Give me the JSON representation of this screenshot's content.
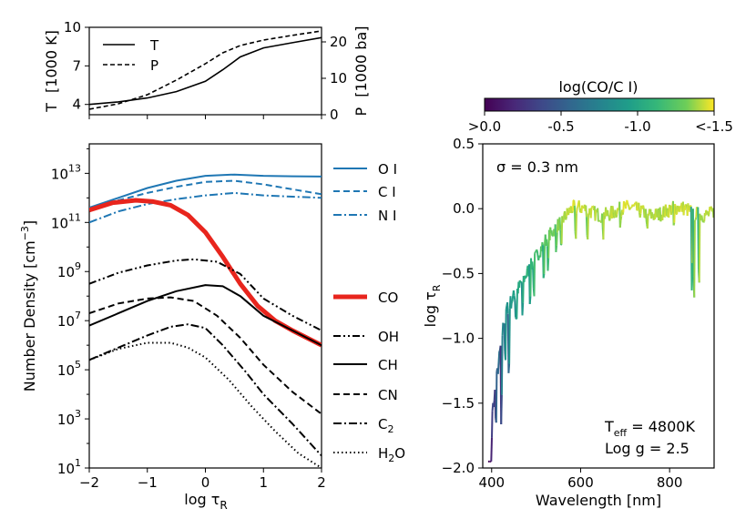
{
  "chart_data": [
    {
      "id": "temperature_pressure",
      "type": "line",
      "x_range": [
        -2,
        2
      ],
      "y_left": {
        "label_main": "T",
        "label_unit": "[1000 K]",
        "range": [
          3.2,
          10
        ],
        "ticks": [
          "4",
          "7",
          "10"
        ],
        "tick_values": [
          4,
          7,
          10
        ]
      },
      "y_right": {
        "label_main": "P",
        "label_unit": "[1000 ba]",
        "range": [
          0,
          24
        ],
        "ticks": [
          "0",
          "10",
          "20"
        ],
        "tick_values": [
          0,
          10,
          20
        ]
      },
      "legend": {
        "position": "upper-left",
        "entries": [
          "T",
          "P"
        ]
      },
      "series": [
        {
          "name": "T",
          "axis": "left",
          "style": "solid",
          "x": [
            -2,
            -1.5,
            -1,
            -0.5,
            0,
            0.3,
            0.6,
            1.0,
            1.5,
            2.0
          ],
          "y": [
            4.0,
            4.2,
            4.5,
            5.0,
            5.8,
            6.7,
            7.7,
            8.4,
            8.8,
            9.2
          ]
        },
        {
          "name": "P",
          "axis": "right",
          "style": "dashed",
          "x": [
            -2,
            -1.5,
            -1,
            -0.5,
            0,
            0.3,
            0.6,
            1.0,
            1.5,
            2.0
          ],
          "y": [
            1.5,
            3.0,
            5.5,
            9.5,
            14.0,
            17.0,
            19.0,
            20.5,
            21.8,
            23.0
          ]
        }
      ]
    },
    {
      "id": "number_density",
      "type": "line",
      "xlabel_main": "log τ",
      "xlabel_sub": "R",
      "ylabel_main": "Number Density [cm",
      "ylabel_sup": "−3",
      "ylabel_end": "]",
      "x_range": [
        -2,
        2
      ],
      "x_ticks": [
        "−2",
        "−1",
        "0",
        "1",
        "2"
      ],
      "x_tick_values": [
        -2,
        -1,
        0,
        1,
        2
      ],
      "y_scale": "log",
      "y_range_log10": [
        1,
        14.2
      ],
      "y_ticks": [
        {
          "base": "10",
          "exp": "1",
          "log10": 1
        },
        {
          "base": "10",
          "exp": "3",
          "log10": 3
        },
        {
          "base": "10",
          "exp": "5",
          "log10": 5
        },
        {
          "base": "10",
          "exp": "7",
          "log10": 7
        },
        {
          "base": "10",
          "exp": "9",
          "log10": 9
        },
        {
          "base": "10",
          "exp": "11",
          "log10": 11
        },
        {
          "base": "10",
          "exp": "13",
          "log10": 13
        }
      ],
      "legend_position": "right",
      "series": [
        {
          "name": "O I",
          "label_text": "O I",
          "color": "#1f77b4",
          "style": "solid",
          "x": [
            -2,
            -1.5,
            -1,
            -0.5,
            0,
            0.5,
            1,
            1.5,
            2
          ],
          "log10_y": [
            11.6,
            12.0,
            12.4,
            12.7,
            12.9,
            12.95,
            12.9,
            12.88,
            12.87
          ]
        },
        {
          "name": "C I",
          "label_text": "C I",
          "color": "#1f77b4",
          "style": "dashed",
          "x": [
            -2,
            -1.5,
            -1,
            -0.5,
            0,
            0.5,
            1,
            1.5,
            2
          ],
          "log10_y": [
            11.5,
            11.9,
            12.2,
            12.45,
            12.65,
            12.7,
            12.55,
            12.35,
            12.15
          ]
        },
        {
          "name": "N I",
          "label_text": "N I",
          "color": "#1f77b4",
          "style": "dashdot",
          "x": [
            -2,
            -1.5,
            -1,
            -0.5,
            0,
            0.5,
            1,
            1.5,
            2
          ],
          "log10_y": [
            11.0,
            11.45,
            11.75,
            11.95,
            12.1,
            12.2,
            12.1,
            12.05,
            12.0
          ]
        },
        {
          "name": "CO",
          "label_text": "CO",
          "color": "#e8251d",
          "style": "solid-thick",
          "x": [
            -2,
            -1.6,
            -1.2,
            -0.9,
            -0.6,
            -0.3,
            0,
            0.3,
            0.6,
            0.9,
            1.2,
            1.5,
            2.0
          ],
          "log10_y": [
            11.5,
            11.8,
            11.9,
            11.85,
            11.7,
            11.3,
            10.6,
            9.6,
            8.5,
            7.6,
            7.0,
            6.6,
            6.0
          ]
        },
        {
          "name": "OH",
          "label_text": "OH",
          "color": "#000000",
          "style": "dashdotdot",
          "x": [
            -2,
            -1.5,
            -1,
            -0.5,
            -0.2,
            0.2,
            0.6,
            1.0,
            1.5,
            2.0
          ],
          "log10_y": [
            8.5,
            8.95,
            9.25,
            9.45,
            9.5,
            9.4,
            8.9,
            7.9,
            7.2,
            6.6
          ]
        },
        {
          "name": "CH",
          "label_text": "CH",
          "color": "#000000",
          "style": "solid",
          "x": [
            -2,
            -1.5,
            -1,
            -0.5,
            0,
            0.3,
            0.6,
            1.0,
            1.5,
            2.0
          ],
          "log10_y": [
            6.8,
            7.3,
            7.8,
            8.2,
            8.45,
            8.4,
            8.0,
            7.2,
            6.6,
            6.0
          ]
        },
        {
          "name": "CN",
          "label_text": "CN",
          "color": "#000000",
          "style": "dashed",
          "x": [
            -2,
            -1.5,
            -1,
            -0.6,
            -0.2,
            0.2,
            0.6,
            1.0,
            1.5,
            2.0
          ],
          "log10_y": [
            7.3,
            7.7,
            7.9,
            7.95,
            7.8,
            7.2,
            6.3,
            5.2,
            4.1,
            3.2
          ]
        },
        {
          "name": "C2",
          "label_text": "C",
          "label_sub": "2",
          "color": "#000000",
          "style": "dashdot",
          "x": [
            -2,
            -1.5,
            -1,
            -0.6,
            -0.3,
            0,
            0.3,
            0.7,
            1.0,
            1.5,
            2.0
          ],
          "log10_y": [
            5.4,
            5.9,
            6.4,
            6.75,
            6.85,
            6.7,
            6.0,
            4.9,
            4.0,
            2.8,
            1.5
          ]
        },
        {
          "name": "H2O",
          "label_text": "H",
          "label_sub": "2",
          "label_end": "O",
          "color": "#000000",
          "style": "dotted",
          "x": [
            -2,
            -1.5,
            -1,
            -0.6,
            -0.3,
            0,
            0.4,
            0.8,
            1.2,
            1.6,
            2.0
          ],
          "log10_y": [
            5.4,
            5.85,
            6.1,
            6.1,
            5.9,
            5.5,
            4.6,
            3.5,
            2.5,
            1.6,
            1.0
          ]
        }
      ]
    },
    {
      "id": "spectrum",
      "type": "line",
      "title_sigma": "σ = 0.3 nm",
      "xlabel": "Wavelength [nm]",
      "ylabel_main": "log τ",
      "ylabel_sub": "R",
      "x_range": [
        380,
        900
      ],
      "x_ticks": [
        "400",
        "600",
        "800"
      ],
      "x_tick_values": [
        400,
        600,
        800
      ],
      "y_range": [
        -2.0,
        0.5
      ],
      "y_ticks": [
        "−2.0",
        "−1.5",
        "−1.0",
        "−0.5",
        "0.0",
        "0.5"
      ],
      "y_tick_values": [
        -2.0,
        -1.5,
        -1.0,
        -0.5,
        0.0,
        0.5
      ],
      "annotation": {
        "teff_label": "T",
        "teff_sub": "eff",
        "teff_value": " = 4800K",
        "logg": "Log g = 2.5"
      },
      "colorbar": {
        "label": "log(CO/C I)",
        "ticks": [
          ">0.0",
          "-0.5",
          "-1.0",
          "<-1.5"
        ],
        "tick_values": [
          0.0,
          -0.5,
          -1.0,
          -1.5
        ],
        "range": [
          0.0,
          -1.5
        ],
        "colormap": "viridis"
      }
    }
  ]
}
